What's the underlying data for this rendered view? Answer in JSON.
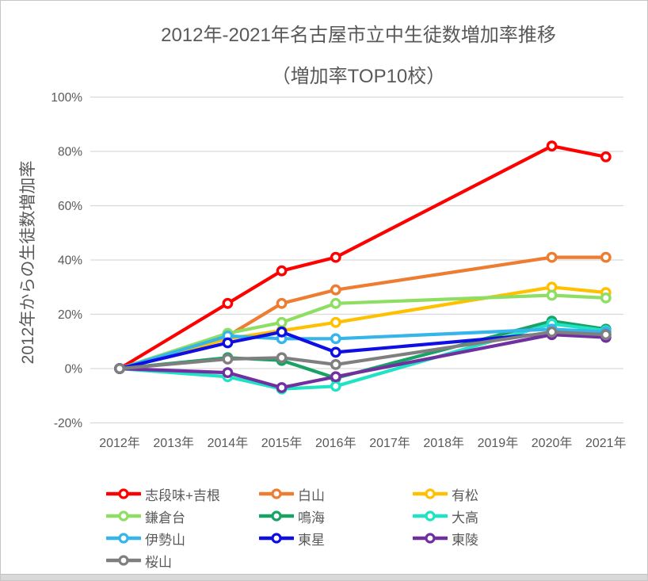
{
  "chart": {
    "title_line1": "2012年-2021年名古屋市立中生徒数増加率推移",
    "title_line2": "（増加率TOP10校）",
    "y_axis_title": "2012年からの生徒数増加率"
  },
  "chart_data": {
    "type": "line",
    "title": "2012年-2021年名古屋市立中生徒数増加率推移",
    "subtitle": "（増加率TOP10校）",
    "xlabel": "",
    "ylabel": "2012年からの生徒数増加率",
    "ylim": [
      -20,
      100
    ],
    "grid": true,
    "legend_position": "bottom",
    "text_color": "#595959",
    "grid_color": "#d9d9d9",
    "categories": [
      "2012年",
      "2013年",
      "2014年",
      "2015年",
      "2016年",
      "2017年",
      "2018年",
      "2019年",
      "2020年",
      "2021年"
    ],
    "y_ticks": [
      {
        "value": 100,
        "label": "100%"
      },
      {
        "value": 80,
        "label": "80%"
      },
      {
        "value": 60,
        "label": "60%"
      },
      {
        "value": 40,
        "label": "40%"
      },
      {
        "value": 20,
        "label": "20%"
      },
      {
        "value": 0,
        "label": "0%"
      },
      {
        "value": -20,
        "label": "-20%"
      }
    ],
    "note": "values are percent growth since 2012; null = no data point plotted (line spans gap)",
    "series": [
      {
        "name": "志段味+吉根",
        "color": "#ff0000",
        "values": [
          0,
          null,
          24,
          36,
          41,
          null,
          null,
          null,
          82,
          78
        ]
      },
      {
        "name": "白山",
        "color": "#ed7d31",
        "values": [
          0,
          null,
          12,
          24,
          29,
          null,
          null,
          null,
          41,
          41
        ]
      },
      {
        "name": "有松",
        "color": "#ffc000",
        "values": [
          0,
          null,
          11,
          14,
          17,
          null,
          null,
          null,
          30,
          28
        ]
      },
      {
        "name": "鎌倉台",
        "color": "#8ede63",
        "values": [
          0,
          null,
          13,
          17,
          24,
          null,
          null,
          null,
          27,
          26
        ]
      },
      {
        "name": "鳴海",
        "color": "#18a266",
        "values": [
          0,
          null,
          4,
          3,
          -3.5,
          null,
          null,
          null,
          17.5,
          14.5
        ]
      },
      {
        "name": "大高",
        "color": "#1fe3c4",
        "values": [
          0,
          null,
          -3,
          -7.5,
          -6.5,
          null,
          null,
          null,
          16.5,
          14
        ]
      },
      {
        "name": "伊勢山",
        "color": "#35b5ea",
        "values": [
          0,
          null,
          12,
          11,
          11,
          null,
          null,
          null,
          14.5,
          13.5
        ]
      },
      {
        "name": "東星",
        "color": "#0f0fe3",
        "values": [
          0,
          null,
          9.5,
          13.5,
          6,
          null,
          null,
          null,
          13,
          12.5
        ]
      },
      {
        "name": "東陵",
        "color": "#7030a0",
        "values": [
          0,
          null,
          -1.5,
          -7,
          -3,
          null,
          null,
          null,
          12.5,
          11.5
        ]
      },
      {
        "name": "桜山",
        "color": "#7f7f7f",
        "values": [
          0,
          null,
          3.5,
          4,
          1.5,
          null,
          null,
          null,
          13.5,
          12.5
        ]
      }
    ]
  }
}
